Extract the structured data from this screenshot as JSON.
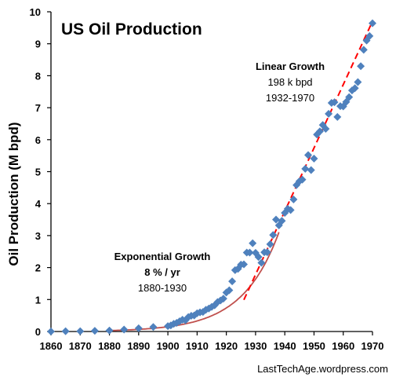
{
  "chart_data": {
    "type": "scatter",
    "title": "US Oil Production",
    "ylabel": "Oil Production (M bpd)",
    "xlabel": "",
    "xlim": [
      1860,
      1970
    ],
    "ylim": [
      0,
      10
    ],
    "x_ticks": [
      "1860",
      "1870",
      "1880",
      "1890",
      "1900",
      "1910",
      "1920",
      "1930",
      "1940",
      "1950",
      "1960",
      "1970"
    ],
    "y_ticks": [
      "0",
      "1",
      "2",
      "3",
      "4",
      "5",
      "6",
      "7",
      "8",
      "9",
      "10"
    ],
    "grid": false,
    "colors": {
      "points": "#4f81bd",
      "exponential_fit": "#c0504d",
      "linear_fit": "#ff0000"
    },
    "series": [
      {
        "marker": "diamond",
        "points": [
          [
            1860,
            0.0
          ],
          [
            1865,
            0.01
          ],
          [
            1870,
            0.01
          ],
          [
            1875,
            0.02
          ],
          [
            1880,
            0.03
          ],
          [
            1885,
            0.06
          ],
          [
            1890,
            0.1
          ],
          [
            1895,
            0.14
          ],
          [
            1900,
            0.17
          ],
          [
            1901,
            0.19
          ],
          [
            1902,
            0.24
          ],
          [
            1903,
            0.27
          ],
          [
            1904,
            0.32
          ],
          [
            1905,
            0.37
          ],
          [
            1906,
            0.35
          ],
          [
            1907,
            0.45
          ],
          [
            1908,
            0.49
          ],
          [
            1909,
            0.5
          ],
          [
            1910,
            0.57
          ],
          [
            1911,
            0.6
          ],
          [
            1912,
            0.61
          ],
          [
            1913,
            0.68
          ],
          [
            1914,
            0.72
          ],
          [
            1915,
            0.77
          ],
          [
            1916,
            0.82
          ],
          [
            1917,
            0.92
          ],
          [
            1918,
            0.97
          ],
          [
            1919,
            1.03
          ],
          [
            1920,
            1.22
          ],
          [
            1921,
            1.29
          ],
          [
            1922,
            1.57
          ],
          [
            1923,
            1.92
          ],
          [
            1924,
            1.96
          ],
          [
            1925,
            2.09
          ],
          [
            1926,
            2.1
          ],
          [
            1927,
            2.47
          ],
          [
            1928,
            2.47
          ],
          [
            1929,
            2.76
          ],
          [
            1930,
            2.46
          ],
          [
            1931,
            2.33
          ],
          [
            1932,
            2.15
          ],
          [
            1933,
            2.48
          ],
          [
            1934,
            2.48
          ],
          [
            1935,
            2.73
          ],
          [
            1936,
            3.02
          ],
          [
            1937,
            3.5
          ],
          [
            1938,
            3.32
          ],
          [
            1939,
            3.46
          ],
          [
            1940,
            3.71
          ],
          [
            1941,
            3.84
          ],
          [
            1942,
            3.8
          ],
          [
            1943,
            4.13
          ],
          [
            1944,
            4.58
          ],
          [
            1945,
            4.7
          ],
          [
            1946,
            4.75
          ],
          [
            1947,
            5.09
          ],
          [
            1948,
            5.52
          ],
          [
            1949,
            5.05
          ],
          [
            1950,
            5.41
          ],
          [
            1951,
            6.16
          ],
          [
            1952,
            6.26
          ],
          [
            1953,
            6.46
          ],
          [
            1954,
            6.34
          ],
          [
            1955,
            6.81
          ],
          [
            1956,
            7.15
          ],
          [
            1957,
            7.17
          ],
          [
            1958,
            6.71
          ],
          [
            1959,
            7.05
          ],
          [
            1960,
            7.04
          ],
          [
            1961,
            7.18
          ],
          [
            1962,
            7.33
          ],
          [
            1963,
            7.54
          ],
          [
            1964,
            7.61
          ],
          [
            1965,
            7.8
          ],
          [
            1966,
            8.3
          ],
          [
            1967,
            8.81
          ],
          [
            1968,
            9.1
          ],
          [
            1969,
            9.24
          ],
          [
            1970,
            9.64
          ]
        ]
      }
    ],
    "fits": [
      {
        "kind": "exponential",
        "style": "solid",
        "x": [
          1880,
          1938
        ],
        "annotation": [
          "Exponential Growth",
          "8 % / yr",
          "1880-1930"
        ]
      },
      {
        "kind": "linear",
        "style": "dashed",
        "x": [
          1926,
          1970
        ],
        "annotation": [
          "Linear Growth",
          "198 k bpd",
          "1932-1970"
        ]
      }
    ],
    "credit": "LastTechAge.wordpress.com"
  }
}
